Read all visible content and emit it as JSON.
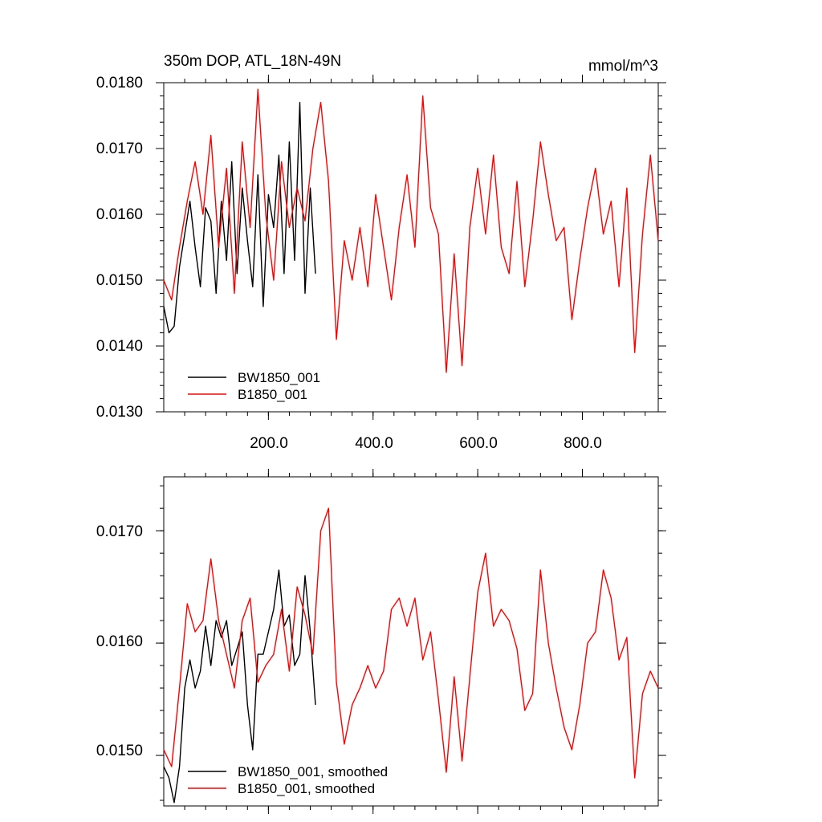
{
  "chart_data": [
    {
      "type": "line",
      "title": "350m DOP, ATL_18N-49N",
      "units_label": "mmol/m^3",
      "xlabel": "",
      "ylabel": "",
      "xlim": [
        0,
        945
      ],
      "ylim": [
        0.013,
        0.018
      ],
      "x_ticks": [
        200,
        400,
        600,
        800
      ],
      "x_tick_labels": [
        "200.0",
        "400.0",
        "600.0",
        "800.0"
      ],
      "y_ticks": [
        0.013,
        0.014,
        0.015,
        0.016,
        0.017,
        0.018
      ],
      "y_tick_labels": [
        "0.0130",
        "0.0140",
        "0.0150",
        "0.0160",
        "0.0170",
        "0.0180"
      ],
      "legend_position": "bottom-left",
      "series": [
        {
          "name": "BW1850_001",
          "color": "#000000",
          "x": [
            0,
            10,
            20,
            30,
            40,
            50,
            60,
            70,
            80,
            90,
            100,
            110,
            120,
            130,
            140,
            150,
            160,
            170,
            180,
            190,
            200,
            210,
            220,
            230,
            240,
            250,
            260,
            270,
            280,
            290
          ],
          "values": [
            0.0146,
            0.0142,
            0.0143,
            0.0152,
            0.0157,
            0.0162,
            0.0155,
            0.0149,
            0.0161,
            0.0159,
            0.0148,
            0.0162,
            0.0153,
            0.0168,
            0.0151,
            0.0164,
            0.0156,
            0.0149,
            0.0166,
            0.0146,
            0.0163,
            0.0158,
            0.0169,
            0.0151,
            0.0171,
            0.0153,
            0.0177,
            0.0148,
            0.0164,
            0.0151
          ]
        },
        {
          "name": "B1850_001",
          "color": "#ff0000",
          "x": [
            0,
            15,
            30,
            45,
            60,
            75,
            90,
            105,
            120,
            135,
            150,
            165,
            180,
            195,
            210,
            225,
            240,
            255,
            270,
            285,
            300,
            315,
            330,
            345,
            360,
            375,
            390,
            405,
            420,
            435,
            450,
            465,
            480,
            495,
            510,
            525,
            540,
            555,
            570,
            585,
            600,
            615,
            630,
            645,
            660,
            675,
            690,
            705,
            720,
            735,
            750,
            765,
            780,
            795,
            810,
            825,
            840,
            855,
            870,
            885,
            900,
            915,
            930,
            945
          ],
          "values": [
            0.015,
            0.0147,
            0.0155,
            0.0162,
            0.0168,
            0.016,
            0.0172,
            0.0155,
            0.0167,
            0.0148,
            0.0171,
            0.0158,
            0.0179,
            0.016,
            0.015,
            0.0168,
            0.0158,
            0.0164,
            0.0159,
            0.017,
            0.0177,
            0.0165,
            0.0141,
            0.0156,
            0.015,
            0.0158,
            0.0149,
            0.0163,
            0.0155,
            0.0147,
            0.0158,
            0.0166,
            0.0155,
            0.0178,
            0.0161,
            0.0157,
            0.0136,
            0.0154,
            0.0137,
            0.0158,
            0.0167,
            0.0157,
            0.0169,
            0.0155,
            0.0151,
            0.0165,
            0.0149,
            0.0159,
            0.0171,
            0.0163,
            0.0156,
            0.0158,
            0.0144,
            0.0153,
            0.0161,
            0.0167,
            0.0157,
            0.0162,
            0.0149,
            0.0164,
            0.0139,
            0.0157,
            0.0169,
            0.0156
          ]
        }
      ]
    },
    {
      "type": "line",
      "title": "",
      "xlabel": "",
      "ylabel": "",
      "xlim": [
        0,
        945
      ],
      "ylim": [
        0.01455,
        0.01748
      ],
      "x_ticks": [
        200,
        400,
        600,
        800
      ],
      "x_tick_labels": [
        "",
        "",
        "",
        ""
      ],
      "y_ticks": [
        0.015,
        0.016,
        0.017
      ],
      "y_tick_labels": [
        "0.0150",
        "0.0160",
        "0.0170"
      ],
      "legend_position": "bottom-left",
      "series": [
        {
          "name": "BW1850_001, smoothed",
          "color": "#000000",
          "x": [
            0,
            10,
            20,
            30,
            40,
            50,
            60,
            70,
            80,
            90,
            100,
            110,
            120,
            130,
            140,
            150,
            160,
            170,
            180,
            190,
            200,
            210,
            220,
            230,
            240,
            250,
            260,
            270,
            280,
            290
          ],
          "values": [
            0.0149,
            0.0148,
            0.01458,
            0.0149,
            0.0156,
            0.01585,
            0.0156,
            0.01575,
            0.01615,
            0.0158,
            0.0162,
            0.01605,
            0.0162,
            0.0158,
            0.01595,
            0.0161,
            0.01545,
            0.01505,
            0.0159,
            0.0159,
            0.0161,
            0.0163,
            0.01665,
            0.01615,
            0.01625,
            0.0158,
            0.0159,
            0.0166,
            0.0161,
            0.01545
          ]
        },
        {
          "name": "B1850_001, smoothed",
          "color": "#ff0000",
          "x": [
            0,
            15,
            30,
            45,
            60,
            75,
            90,
            105,
            120,
            135,
            150,
            165,
            180,
            195,
            210,
            225,
            240,
            255,
            270,
            285,
            300,
            315,
            330,
            345,
            360,
            375,
            390,
            405,
            420,
            435,
            450,
            465,
            480,
            495,
            510,
            525,
            540,
            555,
            570,
            585,
            600,
            615,
            630,
            645,
            660,
            675,
            690,
            705,
            720,
            735,
            750,
            765,
            780,
            795,
            810,
            825,
            840,
            855,
            870,
            885,
            900,
            915,
            930,
            945
          ],
          "values": [
            0.01505,
            0.0149,
            0.0156,
            0.01635,
            0.0161,
            0.0162,
            0.01675,
            0.0162,
            0.0159,
            0.0156,
            0.0162,
            0.0164,
            0.01565,
            0.0158,
            0.0159,
            0.0163,
            0.01575,
            0.0165,
            0.01625,
            0.0159,
            0.017,
            0.0172,
            0.01565,
            0.0151,
            0.01545,
            0.0156,
            0.0158,
            0.0156,
            0.01575,
            0.0163,
            0.0164,
            0.01615,
            0.0164,
            0.01585,
            0.0161,
            0.0155,
            0.01485,
            0.0157,
            0.01495,
            0.0157,
            0.01645,
            0.0168,
            0.01615,
            0.0163,
            0.0162,
            0.01595,
            0.0154,
            0.01555,
            0.01665,
            0.016,
            0.0156,
            0.01525,
            0.01505,
            0.01545,
            0.016,
            0.0161,
            0.01665,
            0.0164,
            0.01585,
            0.01605,
            0.0148,
            0.01555,
            0.01575,
            0.0156
          ]
        }
      ]
    }
  ]
}
